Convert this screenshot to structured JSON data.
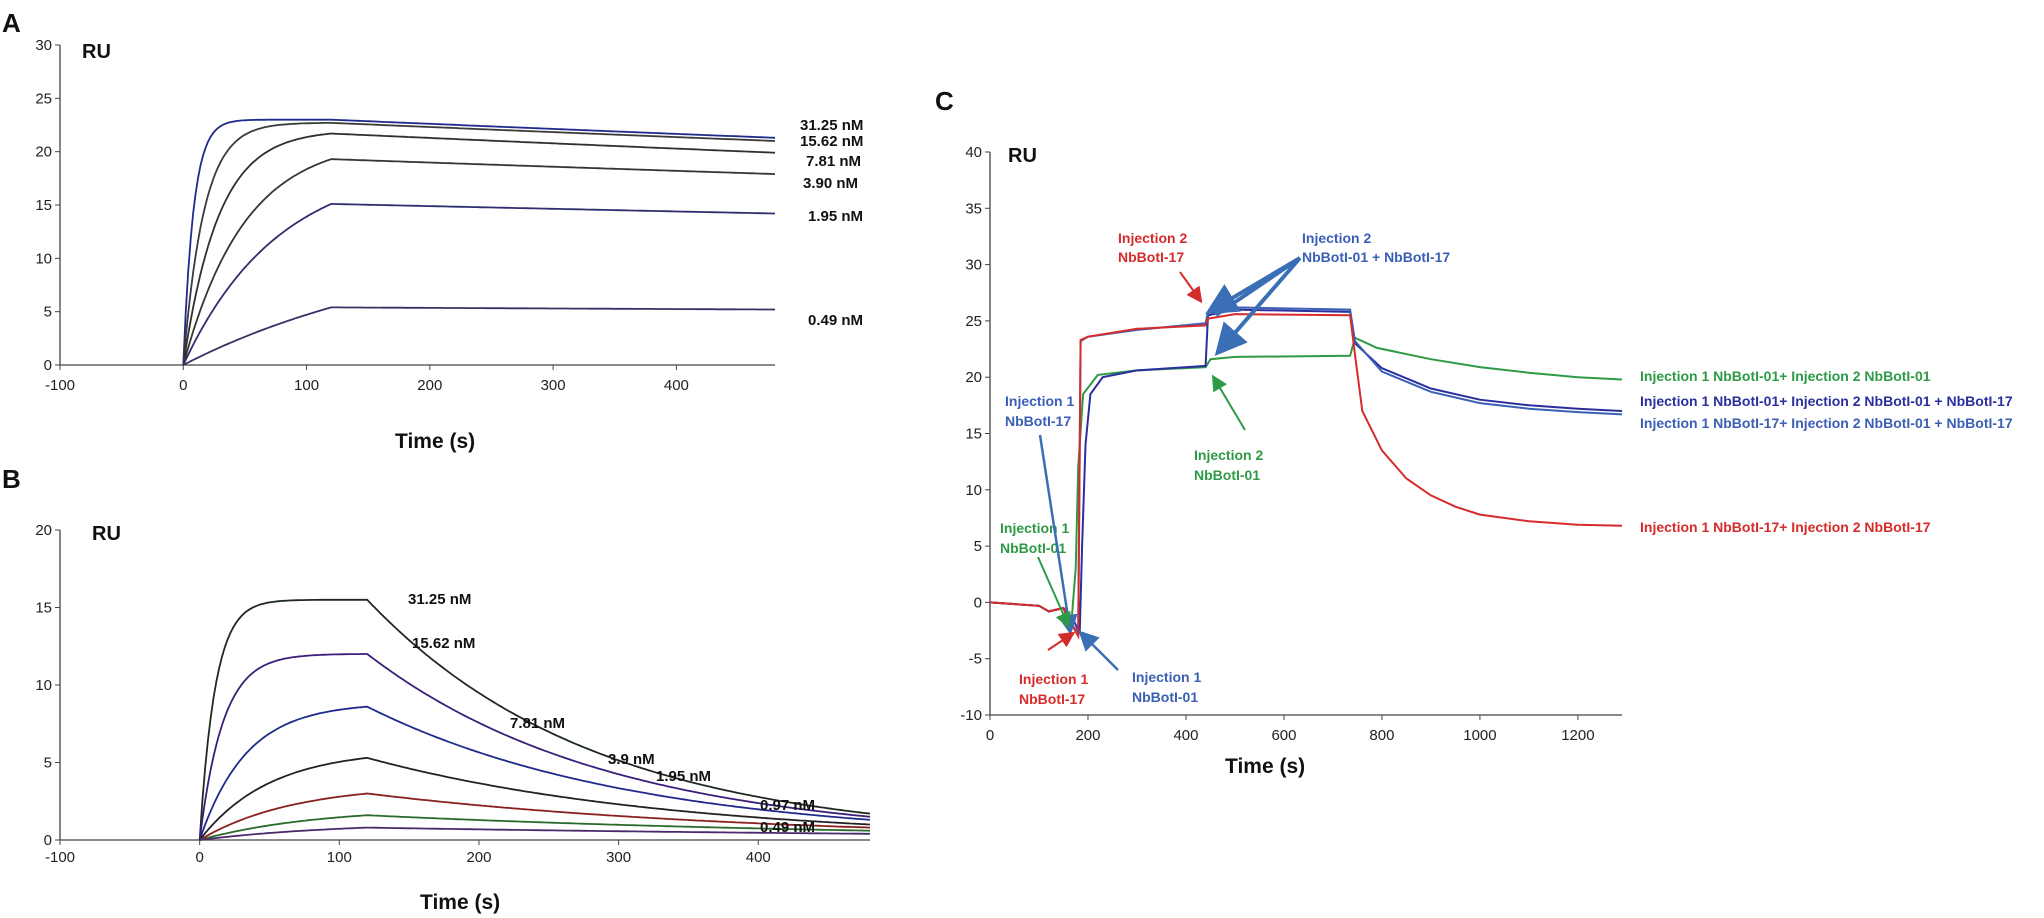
{
  "chart_data": [
    {
      "panel": "A",
      "type": "line",
      "ylabel": "RU",
      "xlabel": "Time (s)",
      "xlim": [
        -100,
        480
      ],
      "ylim": [
        0,
        30
      ],
      "xticks": [
        -100,
        0,
        100,
        200,
        300,
        400
      ],
      "yticks": [
        0,
        5,
        10,
        15,
        20,
        25,
        30
      ],
      "grid": false,
      "injection_end_s": 120,
      "series": [
        {
          "name": "31.25 nM",
          "plateau": 23.0,
          "end": 21.3,
          "k": 0.12,
          "color": "#1f2a8c"
        },
        {
          "name": "15.62 nM",
          "plateau": 22.7,
          "end": 21.0,
          "k": 0.06,
          "color": "#3b3b3b"
        },
        {
          "name": "7.81 nM",
          "plateau": 21.7,
          "end": 19.9,
          "k": 0.035,
          "color": "#2f2f2f"
        },
        {
          "name": "3.90 nM",
          "plateau": 19.3,
          "end": 17.9,
          "k": 0.02,
          "color": "#353535"
        },
        {
          "name": "1.95 nM",
          "plateau": 15.1,
          "end": 14.2,
          "k": 0.013,
          "color": "#2e2e6e"
        },
        {
          "name": "0.49 nM",
          "plateau": 5.4,
          "end": 5.2,
          "k": 0.005,
          "color": "#333366"
        }
      ]
    },
    {
      "panel": "B",
      "type": "line",
      "ylabel": "RU",
      "xlabel": "Time (s)",
      "xlim": [
        -100,
        480
      ],
      "ylim": [
        0,
        20
      ],
      "xticks": [
        -100,
        0,
        100,
        200,
        300,
        400
      ],
      "yticks": [
        0,
        5,
        10,
        15,
        20
      ],
      "grid": false,
      "injection_end_s": 120,
      "series": [
        {
          "name": "31.25 nM",
          "plateau": 15.5,
          "end": 1.7,
          "k": 0.09,
          "color": "#1f2a1f"
        },
        {
          "name": "15.62 nM",
          "plateau": 12.0,
          "end": 1.5,
          "k": 0.06,
          "color": "#3a1f7a"
        },
        {
          "name": "7.81 nM",
          "plateau": 8.6,
          "end": 1.3,
          "k": 0.03,
          "color": "#1f2a8c"
        },
        {
          "name": "3.9 nM",
          "plateau": 5.3,
          "end": 1.0,
          "k": 0.02,
          "color": "#222222"
        },
        {
          "name": "1.95 nM",
          "plateau": 3.0,
          "end": 0.8,
          "k": 0.015,
          "color": "#8a1f1f"
        },
        {
          "name": "0.97 nM",
          "plateau": 1.6,
          "end": 0.6,
          "k": 0.012,
          "color": "#2a6a2a"
        },
        {
          "name": "0.49 nM",
          "plateau": 0.8,
          "end": 0.4,
          "k": 0.01,
          "color": "#4a2a6a"
        }
      ]
    },
    {
      "panel": "C",
      "type": "line",
      "ylabel": "RU",
      "xlabel": "Time (s)",
      "xlim": [
        0,
        1290
      ],
      "ylim": [
        -10,
        40
      ],
      "xticks": [
        0,
        200,
        400,
        600,
        800,
        1000,
        1200
      ],
      "yticks": [
        -10,
        -5,
        0,
        5,
        10,
        15,
        20,
        25,
        30,
        35,
        40
      ],
      "grid": false,
      "series": [
        {
          "name": "Injection 1 NbBotI-01+ Injection 2 NbBotI-01",
          "color": "#2e9a45",
          "points": [
            [
              0,
              0
            ],
            [
              100,
              -0.3
            ],
            [
              120,
              -0.8
            ],
            [
              150,
              -0.5
            ],
            [
              165,
              -2.5
            ],
            [
              175,
              3
            ],
            [
              180,
              12
            ],
            [
              190,
              18.5
            ],
            [
              220,
              20.2
            ],
            [
              300,
              20.6
            ],
            [
              440,
              20.9
            ],
            [
              450,
              21.6
            ],
            [
              500,
              21.8
            ],
            [
              735,
              21.9
            ],
            [
              745,
              23.5
            ],
            [
              790,
              22.6
            ],
            [
              900,
              21.6
            ],
            [
              1000,
              20.9
            ],
            [
              1100,
              20.4
            ],
            [
              1200,
              20.0
            ],
            [
              1290,
              19.8
            ]
          ]
        },
        {
          "name": "Injection 1 NbBotI-01+ Injection 2 NbBotI-01 + NbBotI-17",
          "color": "#2b2f9e",
          "points": [
            [
              0,
              0
            ],
            [
              100,
              -0.3
            ],
            [
              120,
              -0.8
            ],
            [
              150,
              -0.5
            ],
            [
              170,
              -1.5
            ],
            [
              183,
              -2.8
            ],
            [
              188,
              5
            ],
            [
              195,
              14
            ],
            [
              205,
              18.5
            ],
            [
              230,
              20
            ],
            [
              300,
              20.6
            ],
            [
              440,
              21.0
            ],
            [
              445,
              25.5
            ],
            [
              500,
              26.0
            ],
            [
              735,
              25.8
            ],
            [
              745,
              23.0
            ],
            [
              800,
              20.8
            ],
            [
              900,
              19.0
            ],
            [
              1000,
              18.0
            ],
            [
              1100,
              17.5
            ],
            [
              1200,
              17.2
            ],
            [
              1290,
              17.0
            ]
          ]
        },
        {
          "name": "Injection 1 NbBotI-17+ Injection 2 NbBotI-01 + NbBotI-17",
          "color": "#3a5fb5",
          "points": [
            [
              0,
              0
            ],
            [
              100,
              -0.3
            ],
            [
              120,
              -0.8
            ],
            [
              150,
              -0.5
            ],
            [
              165,
              -1.8
            ],
            [
              180,
              -2.8
            ],
            [
              185,
              23.2
            ],
            [
              200,
              23.6
            ],
            [
              300,
              24.2
            ],
            [
              440,
              24.8
            ],
            [
              445,
              25.8
            ],
            [
              500,
              26.2
            ],
            [
              735,
              26.0
            ],
            [
              745,
              23.2
            ],
            [
              800,
              20.5
            ],
            [
              900,
              18.7
            ],
            [
              1000,
              17.7
            ],
            [
              1100,
              17.2
            ],
            [
              1200,
              16.9
            ],
            [
              1290,
              16.7
            ]
          ]
        },
        {
          "name": "Injection 1 NbBotI-17+ Injection 2 NbBotI-17",
          "color": "#d62b2b",
          "points": [
            [
              0,
              0
            ],
            [
              100,
              -0.3
            ],
            [
              120,
              -0.8
            ],
            [
              150,
              -0.5
            ],
            [
              165,
              -1.8
            ],
            [
              180,
              -3.0
            ],
            [
              185,
              23.3
            ],
            [
              200,
              23.6
            ],
            [
              300,
              24.3
            ],
            [
              440,
              24.6
            ],
            [
              445,
              25.2
            ],
            [
              500,
              25.6
            ],
            [
              735,
              25.5
            ],
            [
              745,
              22.0
            ],
            [
              760,
              17.0
            ],
            [
              800,
              13.5
            ],
            [
              850,
              11.0
            ],
            [
              900,
              9.5
            ],
            [
              950,
              8.5
            ],
            [
              1000,
              7.8
            ],
            [
              1100,
              7.2
            ],
            [
              1200,
              6.9
            ],
            [
              1290,
              6.8
            ]
          ]
        }
      ]
    }
  ],
  "panels": {
    "A": {
      "letter": "A"
    },
    "B": {
      "letter": "B"
    },
    "C": {
      "letter": "C"
    }
  },
  "annotations": {
    "c_inj2_nb17_l1": "Injection 2",
    "c_inj2_nb17_l2": "NbBotI-17",
    "c_inj2_mix_l1": "Injection 2",
    "c_inj2_mix_l2": "NbBotI-01 + NbBotI-17",
    "c_inj2_nb01_l1": "Injection 2",
    "c_inj2_nb01_l2": "NbBotI-01",
    "c_inj1_nb17_blue_l1": "Injection 1",
    "c_inj1_nb17_blue_l2": "NbBotI-17",
    "c_inj1_nb01_green_l1": "Injection 1",
    "c_inj1_nb01_green_l2": "NbBotI-01",
    "c_inj1_nb17_red_l1": "Injection 1",
    "c_inj1_nb17_red_l2": "NbBotI-17",
    "c_inj1_nb01_blue_l1": "Injection 1",
    "c_inj1_nb01_blue_l2": "NbBotI-01"
  },
  "colors": {
    "axis": "#333333",
    "green": "#2e9a45",
    "blue": "#3a5fb5",
    "darkblue": "#2b2f9e",
    "red": "#d62b2b"
  }
}
